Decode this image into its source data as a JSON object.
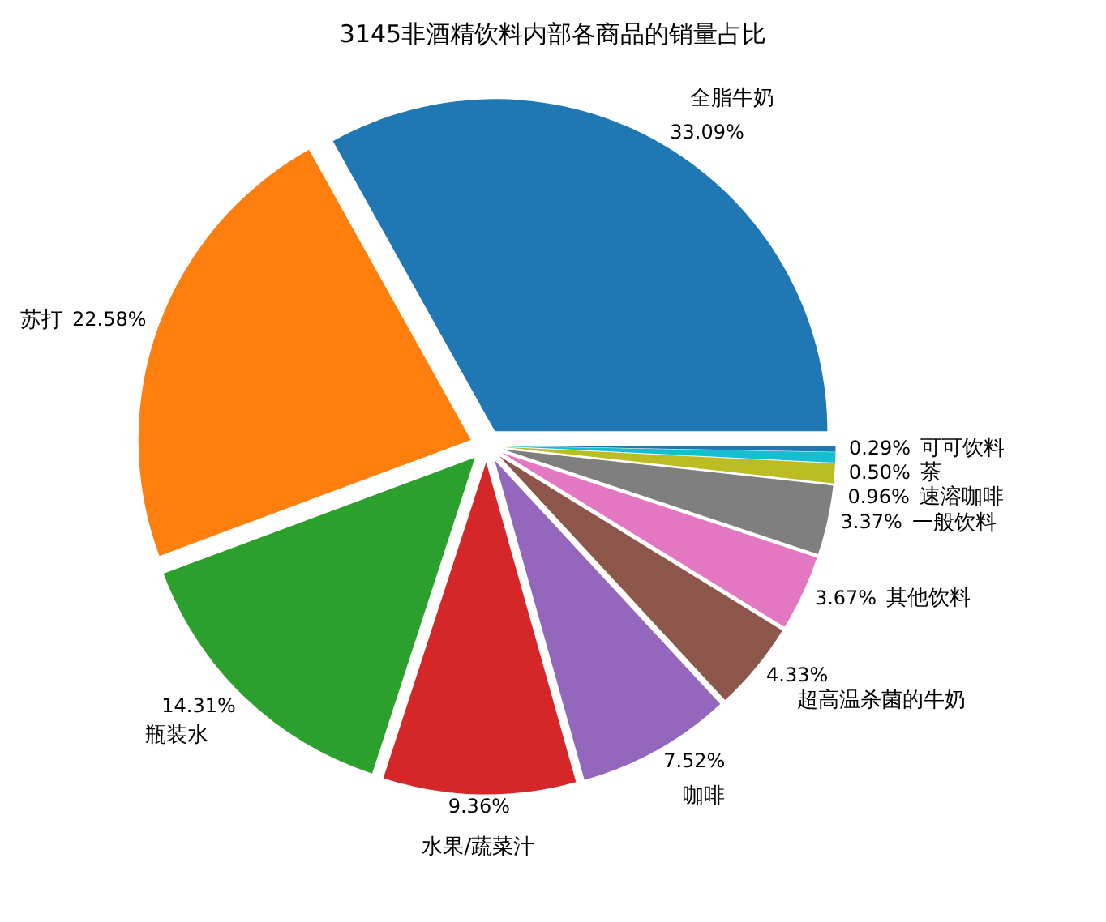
{
  "chart_data": {
    "type": "pie",
    "title": "3145非酒精饮料内部各商品的销量占比",
    "categories": [
      "全脂牛奶",
      "苏打",
      "瓶装水",
      "水果/蔬菜汁",
      "咖啡",
      "超高温杀菌的牛奶",
      "其他饮料",
      "一般饮料",
      "速溶咖啡",
      "茶",
      "可可饮料"
    ],
    "values": [
      33.09,
      22.58,
      14.31,
      9.36,
      7.52,
      4.33,
      3.67,
      3.37,
      0.96,
      0.5,
      0.29
    ],
    "value_labels": [
      "33.09%",
      "22.58%",
      "14.31%",
      "9.36%",
      "7.52%",
      "4.33%",
      "3.67%",
      "3.37%",
      "0.96%",
      "0.50%",
      "0.29%"
    ],
    "colors": [
      "#1f77b4",
      "#ff7f0e",
      "#2ca02c",
      "#d62728",
      "#9467bd",
      "#8c564b",
      "#e377c2",
      "#7f7f7f",
      "#bcbd22",
      "#17becf",
      "#1f77b4"
    ]
  }
}
